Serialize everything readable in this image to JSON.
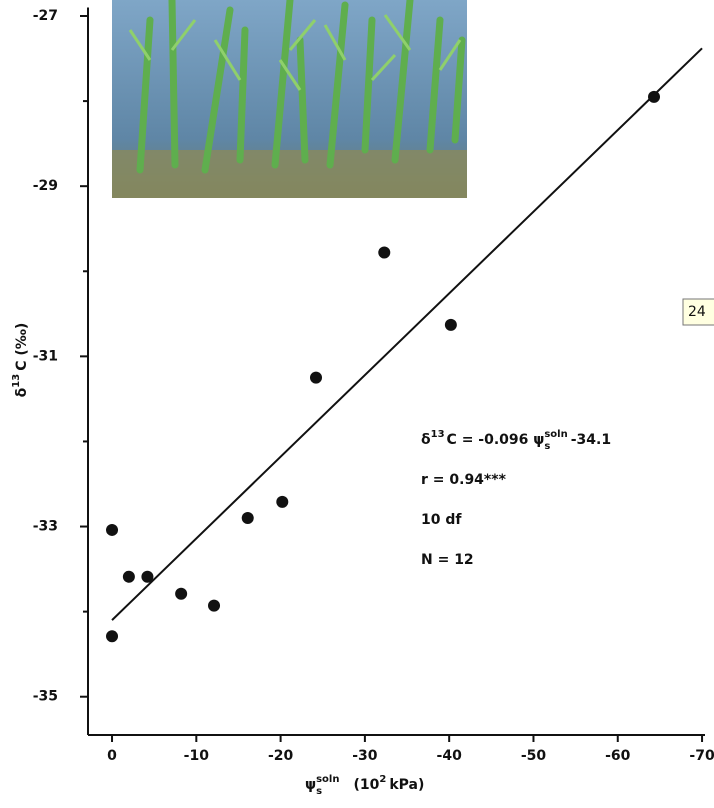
{
  "chart_data": {
    "type": "scatter",
    "x": [
      0,
      -2.0,
      -4.2,
      -8.2,
      -12.1,
      -16.1,
      -20.2,
      -24.2,
      -32.3,
      -40.2,
      -64.3,
      0
    ],
    "y": [
      -33.04,
      -33.59,
      -33.59,
      -33.79,
      -33.93,
      -32.9,
      -32.71,
      -31.25,
      -29.78,
      -30.63,
      -27.95,
      -34.29
    ],
    "color": "#111111",
    "fit": {
      "x": [
        0,
        -70
      ],
      "y": [
        -34.1,
        -27.38
      ]
    },
    "xlim": [
      2.85,
      -70.35
    ],
    "ylim": [
      -35.45,
      -26.9
    ],
    "xticks": [
      0,
      -10,
      -20,
      -30,
      -40,
      -50,
      -60,
      -70
    ],
    "yticks": [
      -27,
      -29,
      -31,
      -33,
      -35
    ],
    "yminor": [
      -28,
      -30,
      -32,
      -34
    ],
    "ylabel": {
      "symbol": "δ",
      "sup": "13",
      "rest": "C (‰)"
    },
    "xlabel": {
      "symbol": "ψ",
      "sub": "s",
      "sup": "soln",
      "rest": "(10",
      "exp": "2",
      "unit": "kPa)"
    },
    "equation": {
      "lhs": "δ",
      "lhs_sup": "13",
      "mid": "C = -0.096 ψ",
      "sub": "s",
      "sup": "soln",
      "end": "-34.1"
    },
    "annotations": [
      "r = 0.94***",
      "10 df",
      "N = 12"
    ],
    "tooltip": "24"
  }
}
